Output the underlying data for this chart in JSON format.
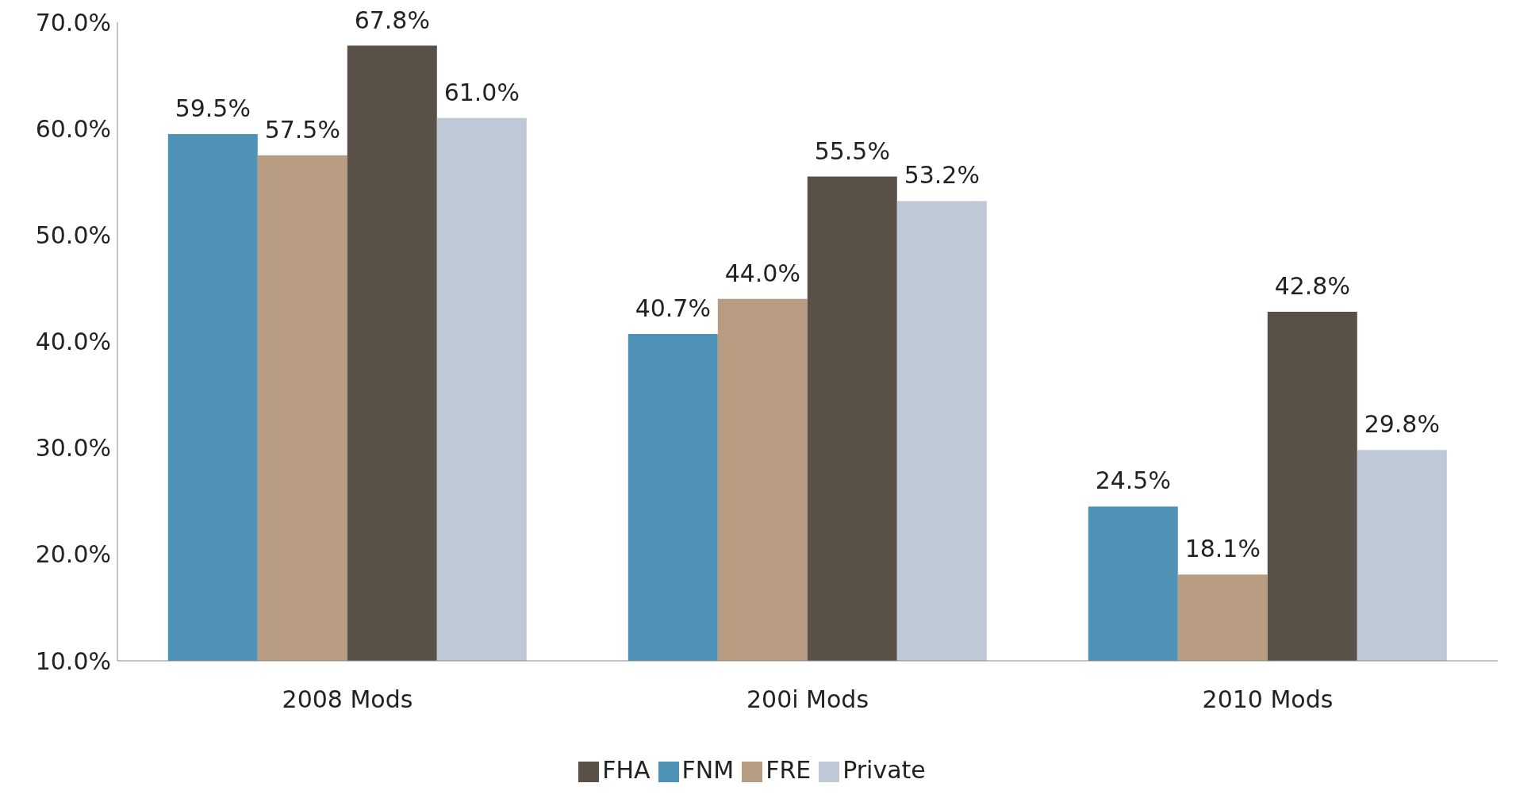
{
  "chart_data": {
    "type": "bar",
    "categories": [
      "2008 Mods",
      "200i Mods",
      "2010 Mods"
    ],
    "series": [
      {
        "name": "FNM",
        "color": "#4e93b6",
        "values": [
          59.5,
          40.7,
          24.5
        ],
        "value_labels": [
          "59.5%",
          "40.7%",
          "24.5%"
        ]
      },
      {
        "name": "FRE",
        "color": "#b89c82",
        "values": [
          57.5,
          44.0,
          18.1
        ],
        "value_labels": [
          "57.5%",
          "44.0%",
          "18.1%"
        ]
      },
      {
        "name": "FHA",
        "color": "#595047",
        "values": [
          67.8,
          55.5,
          42.8
        ],
        "value_labels": [
          "67.8%",
          "55.5%",
          "42.8%"
        ]
      },
      {
        "name": "Private",
        "color": "#bec8d7",
        "values": [
          61.0,
          53.2,
          29.8
        ],
        "value_labels": [
          "61.0%",
          "53.2%",
          "29.8%"
        ]
      }
    ],
    "ylim": [
      10,
      70
    ],
    "yticks": [
      {
        "value": 10,
        "label": "10.0%"
      },
      {
        "value": 20,
        "label": "20.0%"
      },
      {
        "value": 30,
        "label": "30.0%"
      },
      {
        "value": 40,
        "label": "40.0%"
      },
      {
        "value": 50,
        "label": "50.0%"
      },
      {
        "value": 60,
        "label": "60.0%"
      },
      {
        "value": 70,
        "label": "70.0%"
      }
    ],
    "grid": false,
    "legend": "bottom"
  }
}
